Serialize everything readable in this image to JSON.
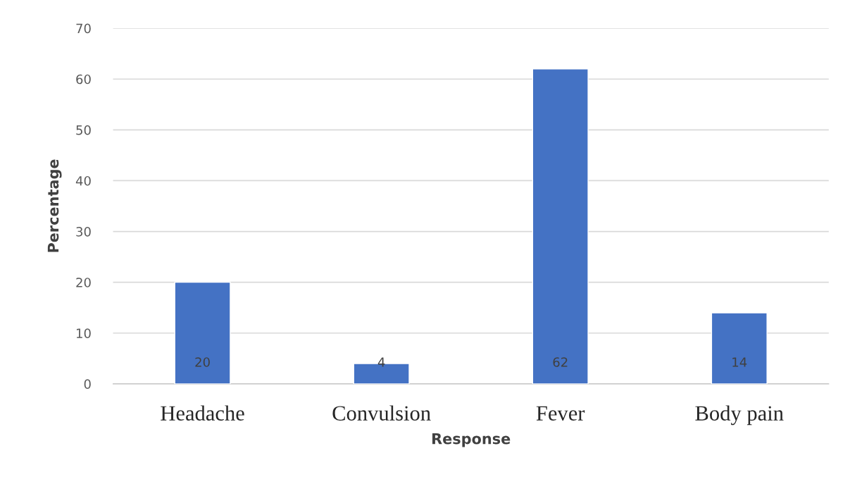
{
  "chart_data": {
    "type": "bar",
    "xlabel": "Response",
    "ylabel": "Percentage",
    "categories": [
      "Headache",
      "Convulsion",
      "Fever",
      "Body pain"
    ],
    "values": [
      20,
      4,
      62,
      14
    ],
    "color": "#4472c4",
    "ylim": [
      0,
      70
    ],
    "yticks": [
      0,
      10,
      20,
      30,
      40,
      50,
      60,
      70
    ],
    "grid": "y",
    "data_labels": true
  }
}
